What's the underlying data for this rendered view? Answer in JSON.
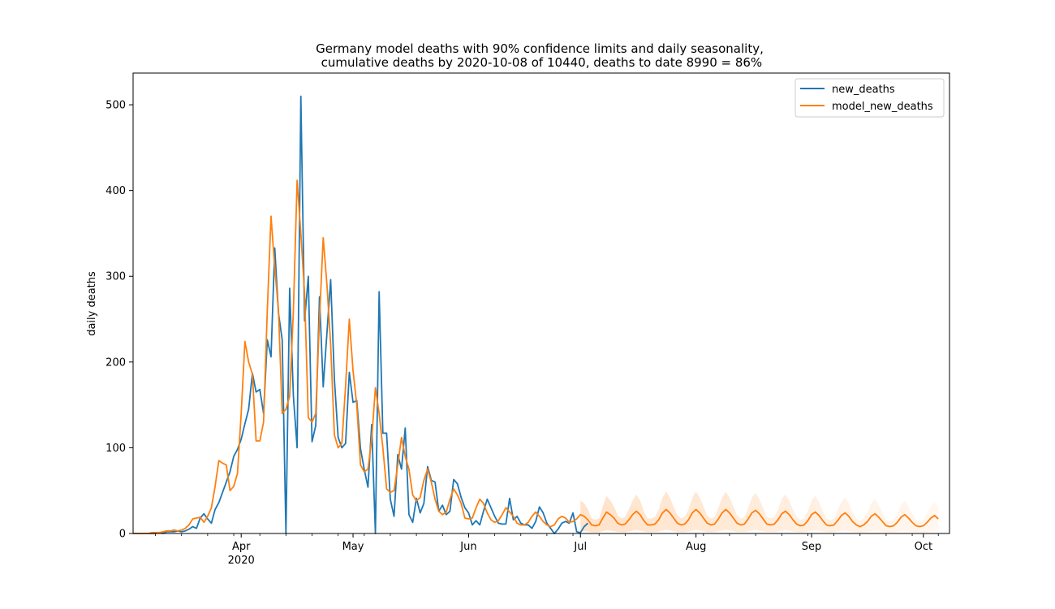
{
  "chart_data": {
    "type": "line",
    "title": "Germany model deaths with 90% confidence limits and daily seasonality,",
    "subtitle": " cumulative deaths by 2020-10-08 of 10440, deaths to date 8990 = 86%",
    "xlabel": "",
    "ylabel": "daily deaths",
    "x_start": "2020-03-03",
    "x_end": "2020-10-08",
    "ylim": [
      0,
      537
    ],
    "y_ticks": [
      0,
      100,
      200,
      300,
      400,
      500
    ],
    "x_ticks": [
      {
        "date": "2020-04-01",
        "label": "Apr",
        "sublabel": "2020"
      },
      {
        "date": "2020-05-01",
        "label": "May",
        "sublabel": ""
      },
      {
        "date": "2020-06-01",
        "label": "Jun",
        "sublabel": ""
      },
      {
        "date": "2020-07-01",
        "label": "Jul",
        "sublabel": ""
      },
      {
        "date": "2020-08-01",
        "label": "Aug",
        "sublabel": ""
      },
      {
        "date": "2020-09-01",
        "label": "Sep",
        "sublabel": ""
      },
      {
        "date": "2020-10-01",
        "label": "Oct",
        "sublabel": ""
      }
    ],
    "grid": false,
    "legend_position": "top-right",
    "series": [
      {
        "name": "new_deaths",
        "color": "#1f77b4",
        "start": "2020-03-03",
        "values": [
          0,
          0,
          0,
          0,
          0,
          0,
          0,
          1,
          0,
          2,
          2,
          2,
          3,
          2,
          3,
          5,
          8,
          6,
          18,
          23,
          17,
          12,
          28,
          36,
          48,
          60,
          72,
          90,
          98,
          110,
          128,
          145,
          187,
          165,
          168,
          140,
          226,
          206,
          333,
          257,
          226,
          0,
          286,
          160,
          100,
          510,
          248,
          300,
          107,
          126,
          276,
          171,
          234,
          296,
          180,
          112,
          100,
          105,
          188,
          153,
          155,
          99,
          75,
          54,
          127,
          0,
          282,
          117,
          117,
          40,
          20,
          92,
          75,
          123,
          22,
          13,
          41,
          24,
          35,
          78,
          62,
          60,
          26,
          33,
          22,
          26,
          63,
          58,
          42,
          30,
          24,
          10,
          15,
          10,
          26,
          40,
          30,
          20,
          12,
          11,
          11,
          41,
          16,
          20,
          12,
          10,
          10,
          6,
          14,
          31,
          24,
          12,
          6,
          0,
          5,
          12,
          14,
          12,
          24,
          2,
          1,
          8,
          12
        ],
        "show_in_legend": true
      },
      {
        "name": "model_new_deaths",
        "color": "#ff7f0e",
        "start": "2020-03-03",
        "values": [
          0,
          0,
          0,
          0,
          0,
          1,
          1,
          1,
          2,
          3,
          3,
          4,
          3,
          4,
          6,
          10,
          17,
          18,
          19,
          13,
          20,
          30,
          55,
          85,
          82,
          80,
          50,
          55,
          70,
          140,
          224,
          200,
          186,
          108,
          108,
          130,
          260,
          370,
          310,
          260,
          140,
          145,
          160,
          260,
          412,
          350,
          280,
          135,
          130,
          140,
          250,
          345,
          290,
          220,
          115,
          100,
          105,
          172,
          250,
          190,
          150,
          80,
          72,
          75,
          110,
          170,
          140,
          100,
          52,
          48,
          50,
          80,
          112,
          90,
          75,
          45,
          38,
          42,
          62,
          75,
          60,
          40,
          26,
          22,
          25,
          40,
          52,
          45,
          35,
          18,
          17,
          18,
          30,
          40,
          35,
          24,
          16,
          13,
          15,
          22,
          30,
          25,
          20,
          12,
          10,
          10,
          13,
          20,
          25,
          20,
          14,
          10,
          8,
          10,
          17,
          20,
          18,
          13,
          14,
          17,
          22,
          20,
          16,
          10,
          9,
          10,
          18,
          25,
          22,
          18,
          12,
          10,
          11,
          16,
          22,
          26,
          22,
          15,
          10,
          10,
          11,
          16,
          24,
          28,
          24,
          18,
          12,
          10,
          11,
          16,
          24,
          28,
          24,
          18,
          12,
          10,
          11,
          17,
          24,
          28,
          24,
          18,
          12,
          10,
          11,
          17,
          24,
          27,
          23,
          17,
          11,
          10,
          11,
          16,
          23,
          26,
          22,
          16,
          11,
          9,
          10,
          15,
          22,
          25,
          21,
          15,
          10,
          9,
          10,
          15,
          21,
          24,
          20,
          14,
          10,
          8,
          10,
          14,
          20,
          23,
          19,
          14,
          9,
          8,
          9,
          13,
          19,
          22,
          18,
          13,
          9,
          8,
          9,
          13,
          18,
          21,
          17
        ],
        "show_in_legend": true
      }
    ],
    "confidence_band": {
      "name": "90% confidence limits",
      "color": "#ff7f0e",
      "start": "2020-07-01",
      "low_factor": 0.15,
      "high_factor": 1.75
    }
  }
}
